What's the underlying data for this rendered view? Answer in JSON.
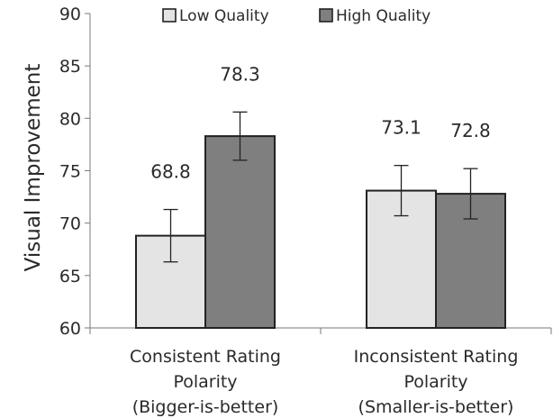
{
  "chart_data": {
    "type": "bar",
    "ylabel": "Visual Improvement",
    "ylim": [
      60,
      90
    ],
    "yticks": [
      "60",
      "65",
      "70",
      "75",
      "80",
      "85",
      "90"
    ],
    "grid": false,
    "legend": "top",
    "categories": [
      [
        "Consistent Rating",
        "Polarity",
        "(Bigger-is-better)"
      ],
      [
        "Inconsistent Rating",
        "Polarity",
        "(Smaller-is-better)"
      ]
    ],
    "series": [
      {
        "name": "Low Quality",
        "color": "#e4e4e4",
        "values": [
          68.8,
          73.1
        ],
        "labels": [
          "68.8",
          "73.1"
        ],
        "err": [
          2.5,
          2.4
        ]
      },
      {
        "name": "High Quality",
        "color": "#7f7f7f",
        "values": [
          78.3,
          72.8
        ],
        "labels": [
          "78.3",
          "72.8"
        ],
        "err": [
          2.3,
          2.4
        ]
      }
    ]
  }
}
